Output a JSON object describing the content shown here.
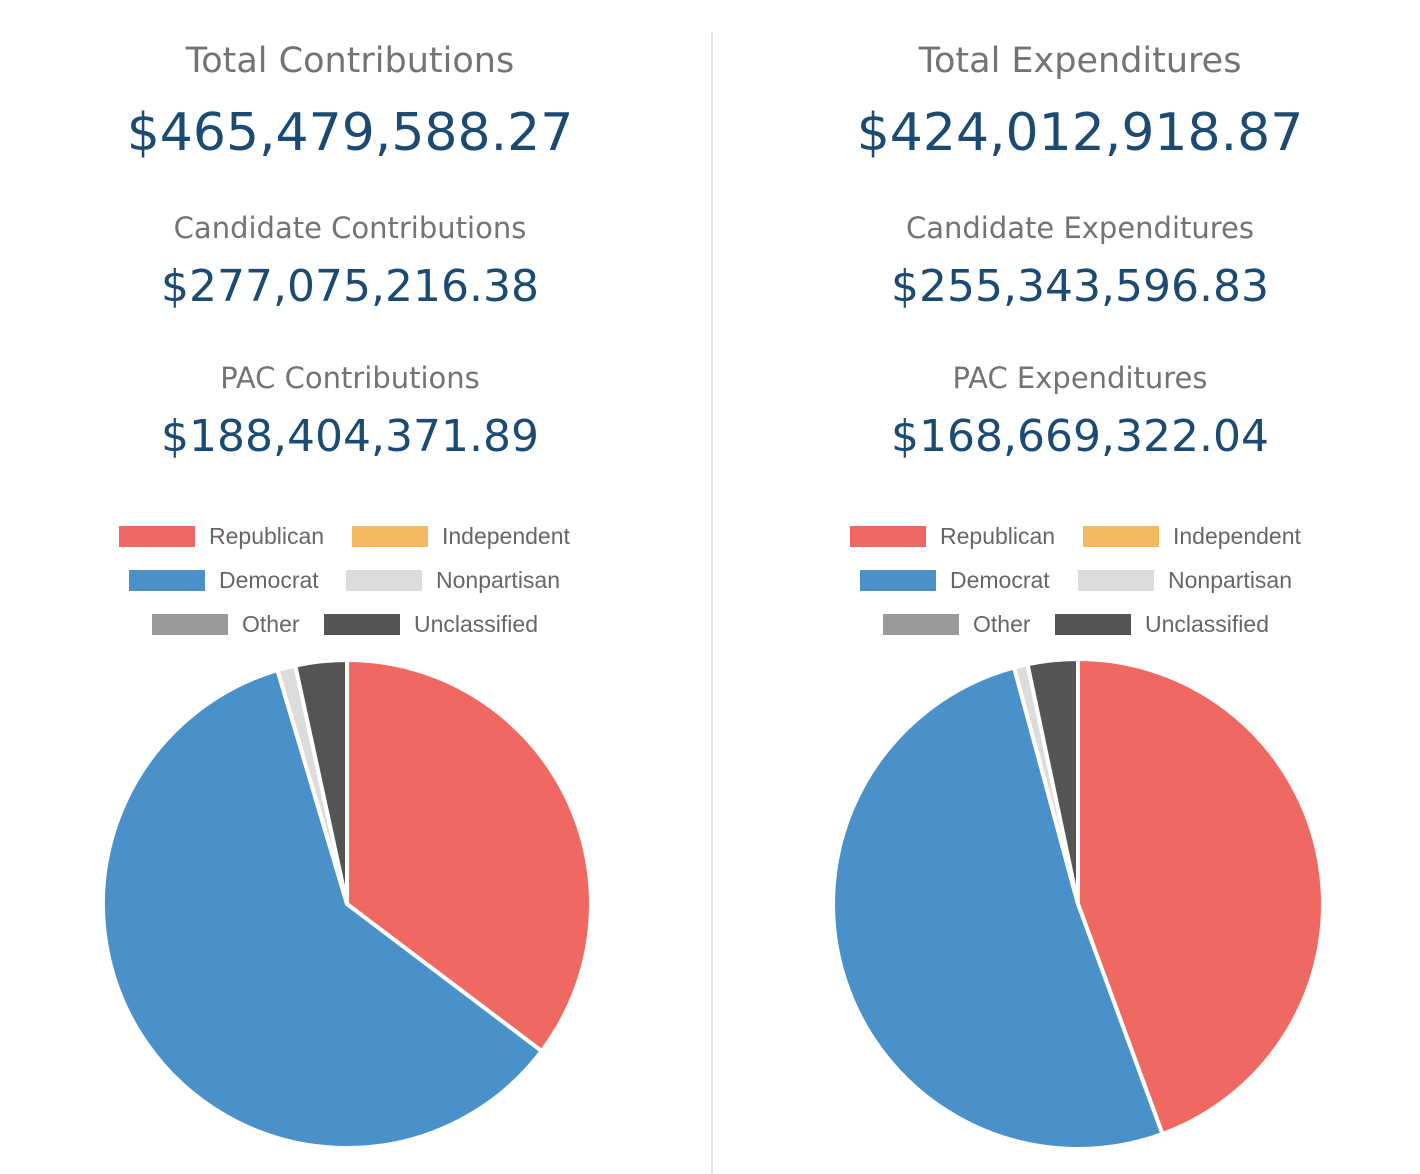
{
  "panels": [
    {
      "total_label": "Total Contributions",
      "total_value": "$465,479,588.27",
      "candidate_label": "Candidate Contributions",
      "candidate_value": "$277,075,216.38",
      "pac_label": "PAC Contributions",
      "pac_value": "$188,404,371.89"
    },
    {
      "total_label": "Total Expenditures",
      "total_value": "$424,012,918.87",
      "candidate_label": "Candidate Expenditures",
      "candidate_value": "$255,343,596.83",
      "pac_label": "PAC Expenditures",
      "pac_value": "$168,669,322.04"
    }
  ],
  "legend": [
    {
      "label": "Republican",
      "color": "#ef6962"
    },
    {
      "label": "Independent",
      "color": "#f4b95e"
    },
    {
      "label": "Democrat",
      "color": "#4b91c9"
    },
    {
      "label": "Nonpartisan",
      "color": "#dcdcdc"
    },
    {
      "label": "Other",
      "color": "#9a9a9a"
    },
    {
      "label": "Unclassified",
      "color": "#545454"
    }
  ],
  "chart_data": [
    {
      "type": "pie",
      "categories": [
        "Republican",
        "Independent",
        "Democrat",
        "Nonpartisan",
        "Other",
        "Unclassified"
      ],
      "values": [
        35.3,
        0,
        60.1,
        1.2,
        0,
        3.4
      ],
      "unit": "percent of total",
      "legend_position": "top"
    },
    {
      "type": "pie",
      "categories": [
        "Republican",
        "Independent",
        "Democrat",
        "Nonpartisan",
        "Other",
        "Unclassified"
      ],
      "values": [
        44.4,
        0,
        51.4,
        0.9,
        0,
        3.3
      ],
      "unit": "percent of total",
      "legend_position": "top"
    }
  ]
}
